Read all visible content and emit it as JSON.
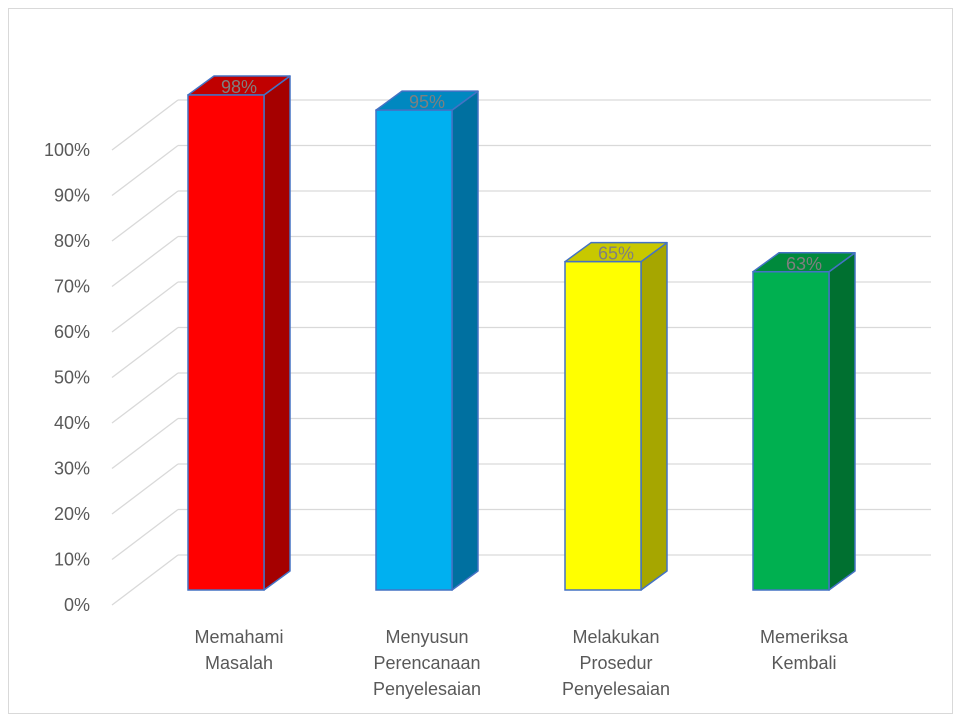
{
  "chart_data": {
    "type": "bar",
    "style": "3d-column",
    "categories": [
      [
        "Memahami",
        "Masalah"
      ],
      [
        "Menyusun",
        "Perencanaan",
        "Penyelesaian"
      ],
      [
        "Melakukan",
        "Prosedur",
        "Penyelesaian"
      ],
      [
        "Memeriksa",
        "Kembali"
      ]
    ],
    "values": [
      98,
      95,
      65,
      63
    ],
    "data_labels": [
      "98%",
      "95%",
      "65%",
      "63%"
    ],
    "ylim": [
      0,
      100
    ],
    "y_ticks": [
      "0%",
      "10%",
      "20%",
      "30%",
      "40%",
      "50%",
      "60%",
      "70%",
      "80%",
      "90%",
      "100%"
    ],
    "grid": true,
    "legend": "none",
    "colors": {
      "front": [
        "#ff0000",
        "#00b0f0",
        "#ffff00",
        "#00b050"
      ],
      "side": [
        "#a50000",
        "#0070a0",
        "#a6a600",
        "#007030"
      ],
      "top": [
        "#c00000",
        "#0088c0",
        "#c8c800",
        "#008a3c"
      ],
      "edge": "#4472c4",
      "grid": "#d9d9d9"
    }
  }
}
